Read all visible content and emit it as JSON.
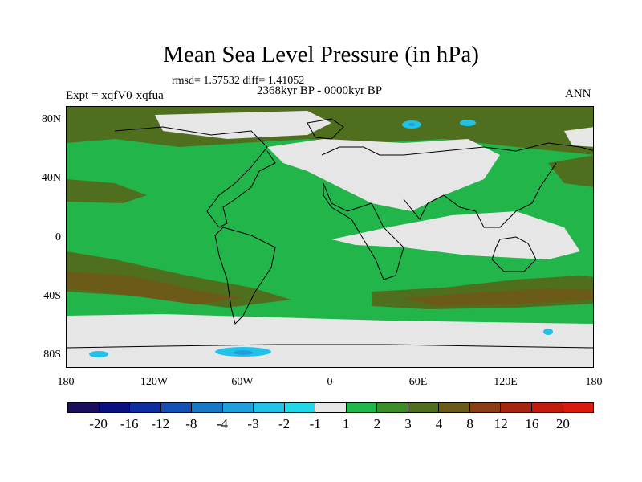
{
  "title": "Mean Sea Level Pressure (in hPa)",
  "stats": "rmsd= 1.57532  diff= 1.41052",
  "experiment": "Expt = xqfV0-xqfua",
  "period": "2368kyr BP - 0000kyr BP",
  "season": "ANN",
  "lat_labels": [
    "80N",
    "40N",
    "0",
    "40S",
    "80S"
  ],
  "lon_labels": [
    "180",
    "120W",
    "60W",
    "0",
    "60E",
    "120E",
    "180"
  ],
  "colorbar": {
    "labels": [
      "-20",
      "-16",
      "-12",
      "-8",
      "-4",
      "-3",
      "-2",
      "-1",
      "1",
      "2",
      "3",
      "4",
      "8",
      "12",
      "16",
      "20"
    ],
    "colors": [
      "#1a0f5c",
      "#0a1080",
      "#0c2ea0",
      "#1451b5",
      "#1a78c8",
      "#1fa0dc",
      "#22c2e8",
      "#22d8e8",
      "#e6e6e6",
      "#21b54a",
      "#3c8c28",
      "#4f6f1e",
      "#6b5a18",
      "#8a3e14",
      "#a6250f",
      "#c21b0b",
      "#d81b0a"
    ]
  }
}
